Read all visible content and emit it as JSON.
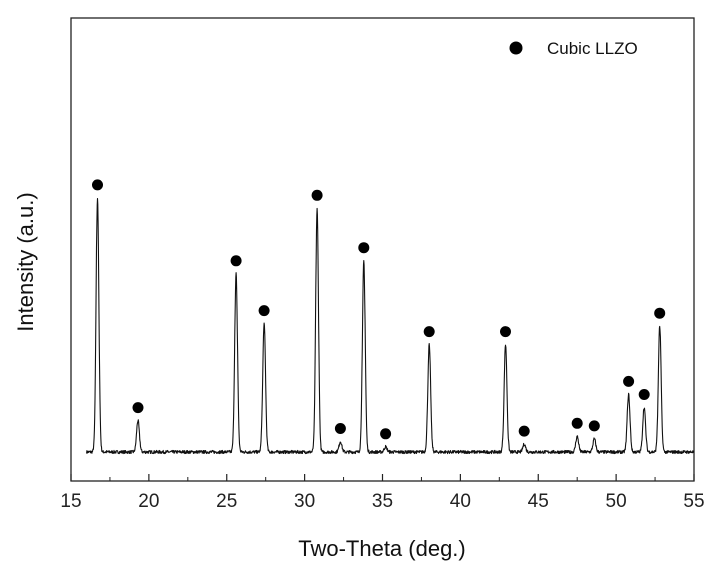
{
  "chart_data": {
    "type": "line",
    "title": "",
    "xlabel": "Two-Theta (deg.)",
    "ylabel": "Intensity (a.u.)",
    "xlim": [
      15,
      55
    ],
    "x_ticks": [
      15,
      20,
      25,
      30,
      35,
      40,
      45,
      50,
      55
    ],
    "y_ticks_shown": false,
    "grid": false,
    "legend": {
      "position": "top-right",
      "entries": [
        {
          "label": "Cubic LLZO",
          "marker": "filled-circle"
        }
      ]
    },
    "series": [
      {
        "name": "Cubic LLZO",
        "line_color": "#111111",
        "baseline": 0,
        "peaks": [
          {
            "x": 16.7,
            "y": 0.97
          },
          {
            "x": 19.3,
            "y": 0.12
          },
          {
            "x": 25.6,
            "y": 0.68
          },
          {
            "x": 27.4,
            "y": 0.49
          },
          {
            "x": 30.8,
            "y": 0.93
          },
          {
            "x": 32.3,
            "y": 0.04
          },
          {
            "x": 33.8,
            "y": 0.73
          },
          {
            "x": 35.2,
            "y": 0.02
          },
          {
            "x": 38.0,
            "y": 0.41
          },
          {
            "x": 42.9,
            "y": 0.41
          },
          {
            "x": 44.1,
            "y": 0.03
          },
          {
            "x": 47.5,
            "y": 0.06
          },
          {
            "x": 48.6,
            "y": 0.05
          },
          {
            "x": 50.8,
            "y": 0.22
          },
          {
            "x": 51.8,
            "y": 0.17
          },
          {
            "x": 52.8,
            "y": 0.48
          }
        ]
      }
    ],
    "marker_color": "#000000"
  }
}
